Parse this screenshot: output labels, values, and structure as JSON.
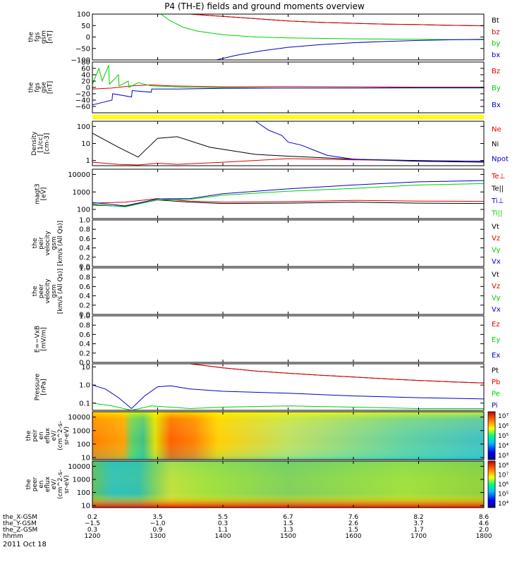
{
  "title": "P4 (TH-E) fields and ground moments overview",
  "colors": {
    "black": "#000000",
    "red": "#e00000",
    "green": "#00d000",
    "blue": "#0000cc",
    "yellow": "#ffff00"
  },
  "chart_data": [
    {
      "id": "fgs_gsm",
      "type": "line",
      "ylabel": [
        "the",
        "fgs",
        "gsm",
        "[nT]"
      ],
      "ylim": [
        -100,
        100
      ],
      "yticks": [
        {
          "v": 100,
          "t": "100"
        },
        {
          "v": 50,
          "t": "50"
        },
        {
          "v": 0,
          "t": "0"
        },
        {
          "v": -50,
          "t": "−50"
        },
        {
          "v": -100,
          "t": "−100"
        }
      ],
      "legend": [
        "Bt",
        "bz",
        "by",
        "bx"
      ],
      "series": [
        {
          "name": "Bt",
          "color": "black",
          "x": [
            1350,
            1380,
            1420,
            1460,
            1500,
            1550,
            1600,
            1650,
            1700,
            1750,
            1800
          ],
          "y": [
            100,
            94,
            86,
            78,
            70,
            64,
            60,
            56,
            54,
            51,
            49
          ]
        },
        {
          "name": "bz",
          "color": "red",
          "x": [
            1350,
            1380,
            1420,
            1460,
            1500,
            1550,
            1600,
            1650,
            1700,
            1750,
            1800
          ],
          "y": [
            100,
            94,
            86,
            78,
            70,
            64,
            60,
            56,
            54,
            51,
            49
          ]
        },
        {
          "name": "by",
          "color": "green",
          "x": [
            1305,
            1320,
            1340,
            1360,
            1400,
            1450,
            1500,
            1600,
            1700,
            1800
          ],
          "y": [
            100,
            70,
            42,
            26,
            10,
            0,
            -4,
            -8,
            -10,
            -12
          ]
        },
        {
          "name": "bx",
          "color": "blue",
          "x": [
            1390,
            1420,
            1460,
            1500,
            1550,
            1600,
            1650,
            1700,
            1750,
            1800
          ],
          "y": [
            -100,
            -80,
            -60,
            -45,
            -33,
            -25,
            -19,
            -15,
            -12,
            -10
          ]
        }
      ]
    },
    {
      "id": "fgs_gse",
      "type": "line",
      "ylabel": [
        "the",
        "fgs",
        "gse",
        "[nT]"
      ],
      "ylim": [
        -80,
        80
      ],
      "yticks": [
        {
          "v": 80,
          "t": "80"
        },
        {
          "v": 60,
          "t": "60"
        },
        {
          "v": 40,
          "t": "40"
        },
        {
          "v": 20,
          "t": "20"
        },
        {
          "v": 0,
          "t": "0"
        },
        {
          "v": -20,
          "t": "−20"
        },
        {
          "v": -40,
          "t": "−40"
        },
        {
          "v": -60,
          "t": "−60"
        }
      ],
      "legend": [
        "Bz",
        "By",
        "Bx"
      ],
      "series": [
        {
          "name": "Bz",
          "color": "red",
          "x": [
            1200,
            1230,
            1260,
            1290,
            1320,
            1400,
            1500,
            1600,
            1700,
            1800
          ],
          "y": [
            -5,
            -2,
            5,
            8,
            5,
            2,
            3,
            2,
            1,
            1
          ]
        },
        {
          "name": "By",
          "color": "green",
          "x": [
            1200,
            1210,
            1215,
            1225,
            1226,
            1240,
            1241,
            1255,
            1256,
            1270,
            1290,
            1350,
            1500,
            1800
          ],
          "y": [
            10,
            60,
            20,
            70,
            10,
            40,
            5,
            20,
            0,
            15,
            5,
            0,
            -2,
            -2
          ]
        },
        {
          "name": "Bx",
          "color": "blue",
          "x": [
            1200,
            1230,
            1231,
            1260,
            1261,
            1290,
            1291,
            1330,
            1400,
            1500,
            1600,
            1700,
            1800
          ],
          "y": [
            -55,
            -40,
            -20,
            -30,
            -10,
            -15,
            -5,
            -5,
            -3,
            -2,
            -2,
            -1,
            -1
          ]
        }
      ]
    },
    {
      "id": "density",
      "type": "line",
      "log": true,
      "ylabel": [
        "Density",
        "[1/cc]",
        "[cm-3]"
      ],
      "ylim": [
        0.5,
        200
      ],
      "yticks": [
        {
          "v": 100,
          "t": "100"
        },
        {
          "v": 10,
          "t": "10"
        },
        {
          "v": 1,
          "t": "1"
        }
      ],
      "legend": [
        "Ne",
        "Ni",
        "Npot"
      ],
      "series": [
        {
          "name": "Ne",
          "color": "red",
          "x": [
            1200,
            1240,
            1270,
            1300,
            1330,
            1400,
            1500,
            1600,
            1700,
            1800
          ],
          "y": [
            0.8,
            0.6,
            0.55,
            0.7,
            0.6,
            0.8,
            1.3,
            1.1,
            1.0,
            0.9
          ]
        },
        {
          "name": "Ni",
          "color": "black",
          "x": [
            1200,
            1240,
            1270,
            1300,
            1330,
            1380,
            1450,
            1500,
            1600,
            1700,
            1800
          ],
          "y": [
            40,
            6,
            1.6,
            20,
            25,
            6,
            2.3,
            1.8,
            1.2,
            0.9,
            0.8
          ]
        },
        {
          "name": "Npot",
          "color": "blue",
          "x": [
            1450,
            1470,
            1490,
            1500,
            1520,
            1540,
            1560,
            1600,
            1700,
            1800
          ],
          "y": [
            200,
            60,
            30,
            12,
            8,
            4,
            2,
            1.2,
            1.0,
            0.9
          ]
        }
      ]
    },
    {
      "id": "temp",
      "type": "line",
      "log": true,
      "ylabel": [
        "magt3",
        "[eV]"
      ],
      "ylim": [
        30,
        20000
      ],
      "yticks": [
        {
          "v": 10000,
          "t": "10000"
        },
        {
          "v": 1000,
          "t": "1000"
        },
        {
          "v": 100,
          "t": "100"
        }
      ],
      "legend": [
        "Te⊥",
        "Te||",
        "Ti⊥",
        "Ti||"
      ],
      "series": [
        {
          "name": "Te⊥",
          "color": "red",
          "x": [
            1200,
            1250,
            1300,
            1350,
            1400,
            1500,
            1600,
            1700,
            1800
          ],
          "y": [
            230,
            260,
            420,
            300,
            260,
            280,
            330,
            300,
            290
          ]
        },
        {
          "name": "Te||",
          "color": "black",
          "x": [
            1200,
            1250,
            1300,
            1350,
            1400,
            1500,
            1600,
            1700,
            1800
          ],
          "y": [
            180,
            150,
            350,
            260,
            220,
            230,
            260,
            230,
            220
          ]
        },
        {
          "name": "Ti⊥",
          "color": "blue",
          "x": [
            1200,
            1250,
            1300,
            1350,
            1400,
            1500,
            1600,
            1700,
            1800
          ],
          "y": [
            250,
            160,
            400,
            420,
            800,
            1500,
            2500,
            3800,
            4500
          ]
        },
        {
          "name": "Ti||",
          "color": "green",
          "x": [
            1200,
            1250,
            1300,
            1350,
            1400,
            1500,
            1600,
            1700,
            1800
          ],
          "y": [
            200,
            140,
            350,
            380,
            650,
            1100,
            1600,
            2500,
            3000
          ]
        }
      ]
    },
    {
      "id": "peir_v",
      "type": "line",
      "ylabel": [
        "the",
        "peir",
        "velocity",
        "gsm",
        "[km/s (All Qs)]"
      ],
      "ylim": [
        0,
        1
      ],
      "yticks": [
        {
          "v": 1,
          "t": "1.0"
        },
        {
          "v": 0.8,
          "t": "0.8"
        },
        {
          "v": 0.6,
          "t": "0.6"
        },
        {
          "v": 0.4,
          "t": "0.4"
        },
        {
          "v": 0.2,
          "t": "0.2"
        },
        {
          "v": 0,
          "t": "0.0"
        }
      ],
      "legend": [
        "Vt",
        "Vz",
        "Vy",
        "Vx"
      ],
      "series": []
    },
    {
      "id": "peer_v",
      "type": "line",
      "ylabel": [
        "the",
        "peer",
        "velocity",
        "gsm",
        "[km/s (All Qs)]"
      ],
      "ylim": [
        0,
        1
      ],
      "yticks": [
        {
          "v": 1,
          "t": "1.0"
        },
        {
          "v": 0.8,
          "t": "0.8"
        },
        {
          "v": 0.6,
          "t": "0.6"
        },
        {
          "v": 0.4,
          "t": "0.4"
        },
        {
          "v": 0.2,
          "t": "0.2"
        },
        {
          "v": 0,
          "t": "0.0"
        }
      ],
      "legend": [
        "Vt",
        "Vz",
        "Vy",
        "Vx"
      ],
      "series": []
    },
    {
      "id": "efield",
      "type": "line",
      "ylabel": [
        "E=−VxB",
        "[mV/m]"
      ],
      "ylim": [
        0,
        1
      ],
      "yticks": [
        {
          "v": 1,
          "t": "1.0"
        },
        {
          "v": 0.8,
          "t": "0.8"
        },
        {
          "v": 0.6,
          "t": "0.6"
        },
        {
          "v": 0.4,
          "t": "0.4"
        },
        {
          "v": 0.2,
          "t": "0.2"
        },
        {
          "v": 0,
          "t": "0.0"
        }
      ],
      "legend": [
        "Ez",
        "Ey",
        "Ex"
      ],
      "series": []
    },
    {
      "id": "pressure",
      "type": "line",
      "log": true,
      "ylabel": [
        "Pressure",
        "[nPa]"
      ],
      "ylim": [
        0.04,
        15
      ],
      "yticks": [
        {
          "v": 10,
          "t": "10"
        },
        {
          "v": 1,
          "t": "1.0"
        },
        {
          "v": 0.1,
          "t": "0.1"
        }
      ],
      "legend": [
        "Pt",
        "Pb",
        "Pe",
        "Pi"
      ],
      "series": [
        {
          "name": "Pt",
          "color": "black",
          "x": [
            1350,
            1400,
            1450,
            1500,
            1550,
            1600,
            1650,
            1700,
            1750,
            1800
          ],
          "y": [
            15,
            9,
            6,
            4.5,
            3.5,
            2.8,
            2.2,
            1.8,
            1.5,
            1.3
          ]
        },
        {
          "name": "Pb",
          "color": "red",
          "x": [
            1350,
            1400,
            1450,
            1500,
            1550,
            1600,
            1650,
            1700,
            1750,
            1800
          ],
          "y": [
            15,
            9,
            6,
            4.5,
            3.5,
            2.8,
            2.2,
            1.8,
            1.5,
            1.3
          ]
        },
        {
          "name": "Pe",
          "color": "green",
          "x": [
            1200,
            1230,
            1260,
            1290,
            1320,
            1350,
            1400,
            1500,
            1600,
            1700,
            1800
          ],
          "y": [
            0.1,
            0.07,
            0.04,
            0.07,
            0.06,
            0.05,
            0.06,
            0.07,
            0.06,
            0.05,
            0.05
          ]
        },
        {
          "name": "Pi",
          "color": "blue",
          "x": [
            1200,
            1220,
            1240,
            1260,
            1280,
            1300,
            1320,
            1350,
            1400,
            1500,
            1600,
            1700,
            1800
          ],
          "y": [
            1.0,
            0.6,
            0.2,
            0.05,
            0.25,
            0.8,
            0.9,
            0.6,
            0.45,
            0.35,
            0.25,
            0.2,
            0.17
          ]
        }
      ]
    },
    {
      "id": "peir_eflux",
      "type": "heatmap",
      "ylabel": [
        "the",
        "peir",
        "en",
        "eflux",
        "eV/",
        "(cm^2-s-",
        "sr-eV)"
      ],
      "yticks": [
        {
          "v": 10000,
          "t": "10000"
        },
        {
          "v": 1000,
          "t": "1000"
        },
        {
          "v": 100,
          "t": "100"
        },
        {
          "v": 10,
          "t": "10"
        }
      ],
      "ylim": [
        7,
        25000
      ],
      "colorbar": [
        "10³",
        "10⁴",
        "10⁵",
        "10⁶",
        "10⁷"
      ]
    },
    {
      "id": "peer_eflux",
      "type": "heatmap",
      "ylabel": [
        "the",
        "peer",
        "en",
        "eflux",
        "eV/",
        "(cm^2-s-",
        "sr-eV)"
      ],
      "yticks": [
        {
          "v": 10000,
          "t": "10000"
        },
        {
          "v": 1000,
          "t": "1000"
        },
        {
          "v": 100,
          "t": "100"
        },
        {
          "v": 10,
          "t": "10"
        }
      ],
      "ylim": [
        7,
        25000
      ],
      "colorbar": [
        "10⁴",
        "10⁵",
        "10⁶",
        "10⁷",
        "10⁸"
      ]
    }
  ],
  "xaxis": {
    "range": [
      1200,
      1800
    ],
    "ticks": [
      1200,
      1300,
      1400,
      1500,
      1600,
      1700,
      1800
    ],
    "rows": [
      {
        "label": "the_X-GSM",
        "values": [
          "0.2",
          "3.5",
          "5.5",
          "6.7",
          "7.6",
          "8.2",
          "8.6"
        ]
      },
      {
        "label": "the_Y-GSM",
        "values": [
          "−1.5",
          "−1.0",
          "0.3",
          "1.5",
          "2.6",
          "3.7",
          "4.6"
        ]
      },
      {
        "label": "the_Z-GSM",
        "values": [
          "0.3",
          "0.9",
          "1.1",
          "1.3",
          "1.5",
          "1.7",
          "2.0"
        ]
      },
      {
        "label": "hhmm",
        "values": [
          "1200",
          "1300",
          "1400",
          "1500",
          "1600",
          "1700",
          "1800"
        ]
      }
    ],
    "date": "2011 Oct 18"
  }
}
